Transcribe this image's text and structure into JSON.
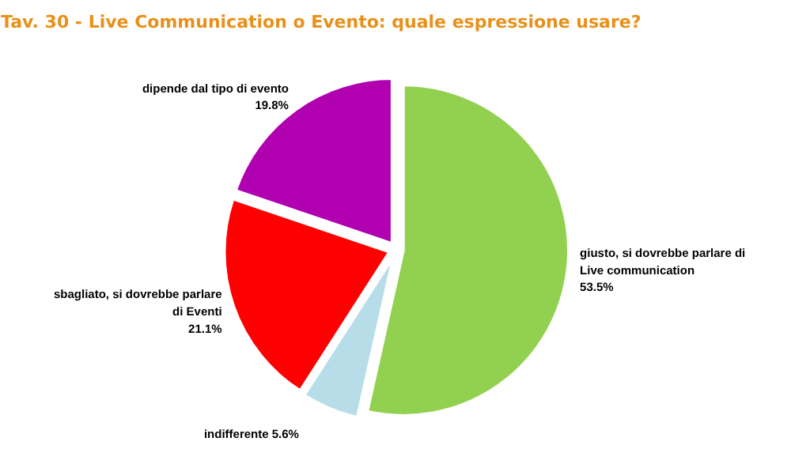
{
  "chart_data": {
    "type": "pie",
    "title": "Tav. 30 - Live Communication o Evento: quale espressione usare?",
    "categories": [
      "giusto, si dovrebbe parlare di Live communication",
      "indifferente",
      "sbagliato, si dovrebbe parlare di Eventi",
      "dipende dal tipo di evento"
    ],
    "values": [
      53.5,
      5.6,
      21.1,
      19.8
    ],
    "colors": [
      "#92d050",
      "#b7dee8",
      "#ff0000",
      "#b000b0"
    ],
    "value_labels": [
      "53.5%",
      "5.6%",
      "21.1%",
      "19.8%"
    ]
  }
}
